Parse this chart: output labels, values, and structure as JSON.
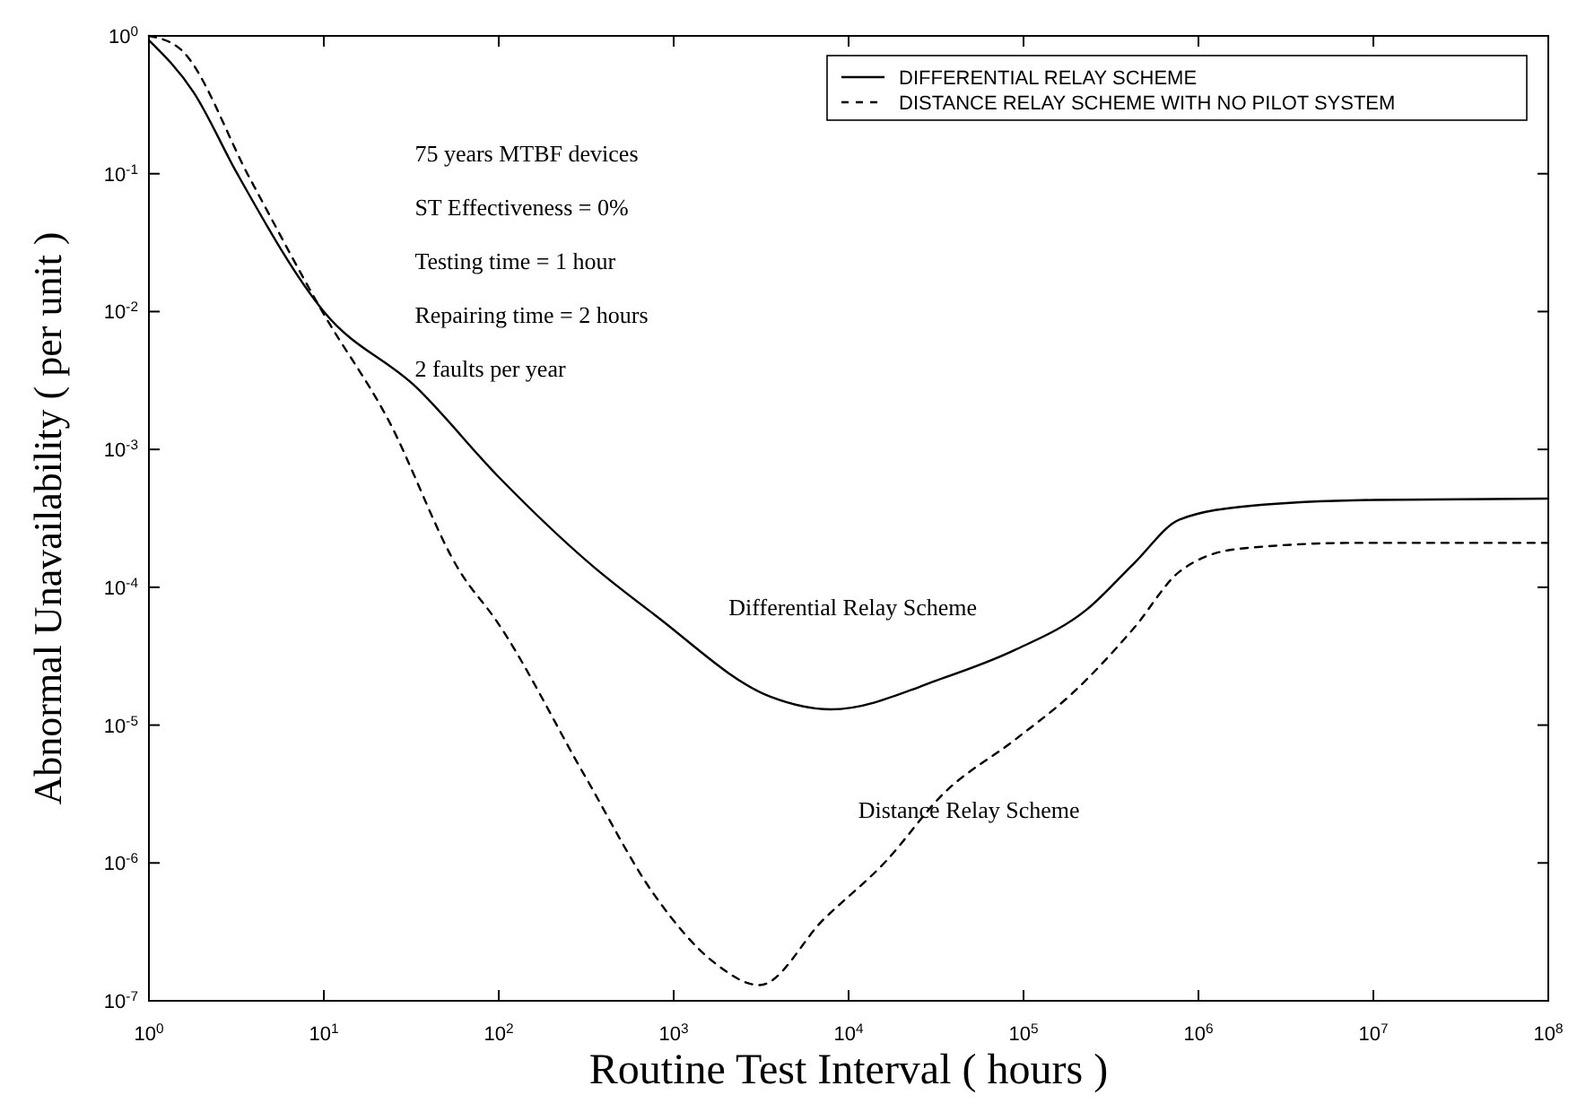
{
  "chart_data": {
    "type": "line",
    "xlabel": "Routine Test Interval ( hours )",
    "ylabel": "Abnormal Unavailability ( per unit )",
    "log": "xy",
    "grid": false,
    "legend": "top right",
    "xlim": [
      1,
      100000000
    ],
    "ylim": [
      1e-07,
      1
    ],
    "xticks": [
      {
        "value": 1,
        "label": "10$^{0}$"
      },
      {
        "value": 10,
        "label": "10$^{1}$"
      },
      {
        "value": 100,
        "label": "10$^{2}$"
      },
      {
        "value": 1000,
        "label": "10$^{3}$"
      },
      {
        "value": 10000,
        "label": "10$^{4}$"
      },
      {
        "value": 100000,
        "label": "10$^{5}$"
      },
      {
        "value": 1000000,
        "label": "10$^{6}$"
      },
      {
        "value": 10000000,
        "label": "10$^{7}$"
      },
      {
        "value": 100000000,
        "label": "10$^{8}$"
      }
    ],
    "yticks": [
      {
        "value": 1e-07,
        "label": "10$^{-7}$"
      },
      {
        "value": 1e-06,
        "label": "10$^{-6}$"
      },
      {
        "value": 1e-05,
        "label": "10$^{-5}$"
      },
      {
        "value": 0.0001,
        "label": "10$^{-4}$"
      },
      {
        "value": 0.001,
        "label": "10$^{-3}$"
      },
      {
        "value": 0.01,
        "label": "10$^{-2}$"
      },
      {
        "value": 0.1,
        "label": "10$^{-1}$"
      },
      {
        "value": 1,
        "label": "10$^{0}$"
      }
    ],
    "series": [
      {
        "name": "DIFFERENTIAL RELAY SCHEME",
        "color": "#000000",
        "line_style": "solid",
        "x": [
          1,
          1.8,
          3.2,
          10,
          34,
          100,
          350,
          780,
          3600,
          7900,
          35000,
          89000,
          230000,
          430000,
          780000,
          2000000,
          10000000,
          100000000
        ],
        "values": [
          0.93,
          0.39,
          0.1,
          0.01,
          0.0028,
          0.00063,
          0.00014,
          6.3e-05,
          1.6e-05,
          1.3e-05,
          2.2e-05,
          3.5e-05,
          6.9e-05,
          0.00015,
          0.00031,
          0.00039,
          0.00043,
          0.00044
        ]
      },
      {
        "name": "DISTANCE RELAY SCHEME WITH NO PILOT SYSTEM",
        "color": "#000000",
        "line_style": "dashed",
        "x": [
          1,
          1.5,
          3.8,
          9.8,
          23,
          60,
          98,
          310,
          780,
          1700,
          3100,
          7200,
          16000,
          35000,
          89000,
          190000,
          430000,
          780000,
          1700000,
          8100000,
          100000000
        ],
        "values": [
          1,
          0.81,
          0.091,
          0.01,
          0.0017,
          0.00013,
          5.6e-05,
          4.3e-06,
          5.8e-07,
          1.9e-07,
          1.3e-07,
          3.9e-07,
          1e-06,
          3.2e-06,
          7.8e-06,
          1.7e-05,
          5.1e-05,
          0.00013,
          0.00019,
          0.00021,
          0.00021
        ]
      }
    ],
    "annotations": [
      "75 years MTBF devices",
      "ST Effectiveness = 0%",
      "Testing time = 1 hour",
      "Repairing time = 2 hours",
      "2 faults per year",
      "Differential Relay Scheme",
      "Distance Relay Scheme"
    ]
  }
}
